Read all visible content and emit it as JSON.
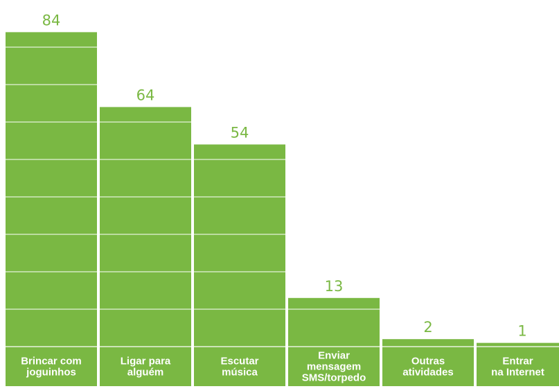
{
  "colors": {
    "bar": "#7ab843",
    "gridline": "#ffffff",
    "value_label": "#7ab843",
    "category_label": "#ffffff"
  },
  "chart_data": {
    "type": "bar",
    "title": "",
    "xlabel": "",
    "ylabel": "",
    "ylim": [
      0,
      84
    ],
    "grid": true,
    "categories": [
      [
        "Brincar com",
        "joguinhos"
      ],
      [
        "Ligar para",
        "alguém"
      ],
      [
        "Escutar",
        "música"
      ],
      [
        "Enviar",
        "mensagem",
        "SMS/torpedo"
      ],
      [
        "Outras",
        "atividades"
      ],
      [
        "Entrar",
        "na Internet"
      ]
    ],
    "values": [
      84,
      64,
      54,
      13,
      2,
      1
    ]
  }
}
